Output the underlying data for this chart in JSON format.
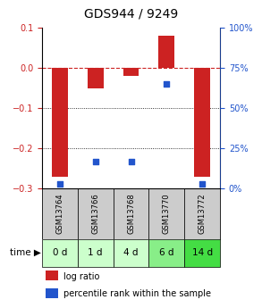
{
  "title": "GDS944 / 9249",
  "samples": [
    "GSM13764",
    "GSM13766",
    "GSM13768",
    "GSM13770",
    "GSM13772"
  ],
  "time_labels": [
    "0 d",
    "1 d",
    "4 d",
    "6 d",
    "14 d"
  ],
  "log_ratio": [
    -0.27,
    -0.05,
    -0.02,
    0.08,
    -0.27
  ],
  "percentile_rank": [
    3,
    17,
    17,
    65,
    3
  ],
  "ylim_left": [
    -0.3,
    0.1
  ],
  "ylim_right": [
    0,
    100
  ],
  "bar_color": "#cc2222",
  "dot_color": "#2255cc",
  "dashed_zero_color": "#cc2222",
  "time_bg_colors": [
    "#ccffcc",
    "#ccffcc",
    "#ccffcc",
    "#88ee88",
    "#44dd44"
  ],
  "sample_bg_color": "#cccccc",
  "title_fontsize": 10,
  "tick_fontsize": 7,
  "legend_fontsize": 7
}
